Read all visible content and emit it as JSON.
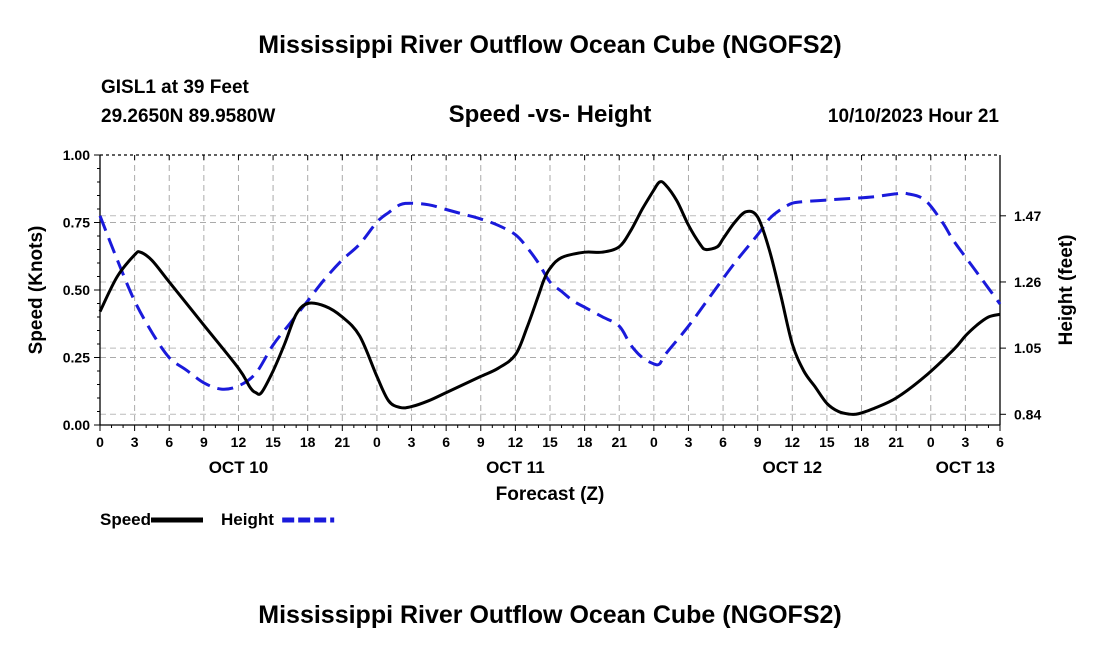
{
  "header": {
    "title": "Mississippi River Outflow Ocean Cube (NGOFS2)",
    "station": "GISL1 at 39 Feet",
    "coords": "29.2650N  89.9580W",
    "subtitle": "Speed -vs- Height",
    "timestamp": "10/10/2023 Hour 21"
  },
  "footer": {
    "title": "Mississippi River Outflow Ocean Cube (NGOFS2)"
  },
  "chart_data": {
    "type": "line",
    "title": "Speed -vs- Height",
    "xlabel": "Forecast (Z)",
    "ylabel": "Speed (Knots)",
    "y2label": "Height (feet)",
    "x_unit": "hours from Oct 10 00Z",
    "xlim": [
      0,
      78
    ],
    "ylim": [
      0,
      1
    ],
    "y2lim": [
      0.806,
      1.663
    ],
    "yticks": [
      "0.00",
      "0.25",
      "0.50",
      "0.75",
      "1.00"
    ],
    "y2ticks": [
      "0.84",
      "1.05",
      "1.26",
      "1.47"
    ],
    "xticks": [
      "0",
      "3",
      "6",
      "9",
      "12",
      "15",
      "18",
      "21",
      "0",
      "3",
      "6",
      "9",
      "12",
      "15",
      "18",
      "21",
      "0",
      "3",
      "6",
      "9",
      "12",
      "15",
      "18",
      "21",
      "0",
      "3",
      "6"
    ],
    "day_labels": [
      {
        "text": "OCT 10",
        "hour": 12
      },
      {
        "text": "OCT 11",
        "hour": 36
      },
      {
        "text": "OCT 12",
        "hour": 60
      },
      {
        "text": "OCT 13",
        "hour": 75
      }
    ],
    "series": [
      {
        "name": "Speed",
        "axis": "left",
        "color": "#000000",
        "style": "solid",
        "x": [
          0,
          1.5,
          3,
          3.5,
          4.5,
          6,
          9,
          12,
          13,
          13.5,
          14,
          15,
          16,
          17,
          18,
          19.5,
          21,
          22.5,
          24,
          25,
          26,
          27,
          28.5,
          30,
          31.5,
          33,
          34.5,
          36,
          37,
          38,
          38.5,
          39,
          40,
          42,
          43.5,
          45,
          46,
          47,
          48,
          48.5,
          49,
          50,
          51,
          52,
          52.5,
          53.5,
          54,
          55,
          56,
          57,
          58,
          59,
          60,
          61,
          62,
          63,
          64,
          65,
          65.5,
          66,
          67,
          69,
          71.5,
          74,
          75,
          76,
          77,
          78
        ],
        "y": [
          0.42,
          0.55,
          0.63,
          0.64,
          0.61,
          0.53,
          0.37,
          0.21,
          0.14,
          0.12,
          0.12,
          0.2,
          0.3,
          0.41,
          0.45,
          0.44,
          0.4,
          0.33,
          0.18,
          0.09,
          0.065,
          0.068,
          0.09,
          0.12,
          0.15,
          0.18,
          0.21,
          0.26,
          0.36,
          0.48,
          0.54,
          0.58,
          0.62,
          0.64,
          0.64,
          0.66,
          0.72,
          0.8,
          0.87,
          0.9,
          0.89,
          0.83,
          0.74,
          0.67,
          0.65,
          0.66,
          0.69,
          0.75,
          0.79,
          0.77,
          0.65,
          0.48,
          0.3,
          0.2,
          0.14,
          0.08,
          0.05,
          0.04,
          0.04,
          0.045,
          0.06,
          0.1,
          0.18,
          0.28,
          0.33,
          0.37,
          0.4,
          0.41
        ]
      },
      {
        "name": "Height",
        "axis": "right",
        "color": "#1a1adb",
        "style": "dashed",
        "x": [
          0,
          1.5,
          3,
          4.5,
          6,
          7.5,
          9,
          10.5,
          12,
          13.5,
          15,
          16.5,
          18,
          19.5,
          21,
          22.5,
          24,
          25,
          26,
          27,
          28.5,
          30,
          31.5,
          33,
          34.5,
          36,
          37,
          38,
          39,
          40,
          41,
          42,
          43.5,
          45,
          46,
          47,
          48,
          48.5,
          49,
          51,
          53,
          55,
          57,
          58,
          59,
          60,
          61,
          63,
          65,
          67,
          69,
          70,
          71.5,
          73,
          74,
          76,
          77,
          78
        ],
        "y": [
          1.47,
          1.33,
          1.2,
          1.1,
          1.02,
          0.98,
          0.94,
          0.92,
          0.93,
          0.97,
          1.06,
          1.13,
          1.2,
          1.27,
          1.33,
          1.38,
          1.45,
          1.48,
          1.505,
          1.51,
          1.505,
          1.49,
          1.475,
          1.46,
          1.44,
          1.41,
          1.37,
          1.32,
          1.26,
          1.23,
          1.2,
          1.18,
          1.15,
          1.12,
          1.06,
          1.02,
          1.0,
          1.0,
          1.03,
          1.12,
          1.22,
          1.32,
          1.41,
          1.46,
          1.49,
          1.51,
          1.515,
          1.52,
          1.525,
          1.53,
          1.54,
          1.54,
          1.52,
          1.45,
          1.39,
          1.29,
          1.24,
          1.19
        ]
      }
    ],
    "legend": [
      {
        "label": "Speed",
        "color": "#000000",
        "style": "solid"
      },
      {
        "label": "Height",
        "color": "#1a1adb",
        "style": "dashed"
      }
    ]
  }
}
